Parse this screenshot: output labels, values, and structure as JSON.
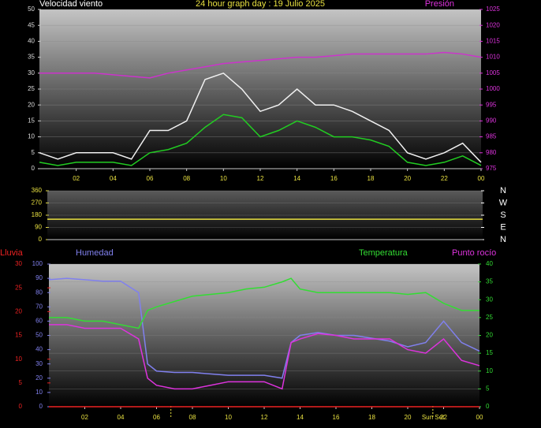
{
  "chart_data": [
    {
      "type": "line",
      "title": "24 hour graph day : 19 Julio 2025",
      "y_label": "Velocidad viento",
      "y2_label": "Presión",
      "x": [
        0,
        1,
        2,
        3,
        4,
        5,
        6,
        7,
        8,
        9,
        10,
        11,
        12,
        13,
        14,
        15,
        16,
        17,
        18,
        19,
        20,
        21,
        22,
        23,
        24
      ],
      "xlim": [
        0,
        24
      ],
      "xticks": [
        {
          "value": 2,
          "label": "02"
        },
        {
          "value": 4,
          "label": "04"
        },
        {
          "value": 6,
          "label": "06"
        },
        {
          "value": 8,
          "label": "08"
        },
        10,
        12,
        14,
        16,
        18,
        20,
        22,
        {
          "value": 24,
          "label": "00"
        }
      ],
      "ylim": [
        0,
        50
      ],
      "yticks": [
        0,
        5,
        10,
        15,
        20,
        25,
        30,
        35,
        40,
        45,
        50
      ],
      "y2lim": [
        975,
        1025
      ],
      "y2ticks": [
        975,
        980,
        985,
        990,
        995,
        1000,
        1005,
        1010,
        1015,
        1020,
        1025
      ],
      "grid": true,
      "series": [
        {
          "color": "#f0f0f0",
          "values": [
            5,
            3,
            5,
            5,
            5,
            3,
            12,
            12,
            15,
            28,
            30,
            25,
            18,
            20,
            25,
            20,
            20,
            18,
            15,
            12,
            5,
            3,
            5,
            8,
            2
          ]
        },
        {
          "color": "#22cc22",
          "values": [
            2,
            1,
            2,
            2,
            2,
            1,
            5,
            6,
            8,
            13,
            17,
            16,
            10,
            12,
            15,
            13,
            10,
            10,
            9,
            7,
            2,
            1,
            2,
            4,
            1
          ]
        },
        {
          "name": "Presión",
          "color": "#cc33cc",
          "axis": "y2",
          "values": [
            1005,
            1005,
            1005,
            1005,
            1004.5,
            1004,
            1003.5,
            1005,
            1006,
            1007,
            1008,
            1008.5,
            1009,
            1009.5,
            1010,
            1010,
            1010.5,
            1011,
            1011,
            1011,
            1011,
            1011,
            1011.5,
            1011,
            1010
          ]
        }
      ]
    },
    {
      "type": "line",
      "x": [
        0,
        24
      ],
      "xlim": [
        0,
        24
      ],
      "ylim": [
        0,
        360
      ],
      "yticks": [
        0,
        90,
        180,
        270,
        360
      ],
      "y2lim": [
        0,
        360
      ],
      "y2ticks": [
        {
          "value": 360,
          "label": "N"
        },
        {
          "value": 270,
          "label": "W"
        },
        {
          "value": 180,
          "label": "S"
        },
        {
          "value": 90,
          "label": "E"
        },
        {
          "value": 0,
          "label": "N"
        }
      ],
      "grid": true,
      "series": [
        {
          "color": "#e8e040",
          "values": [
            150,
            150
          ]
        }
      ]
    },
    {
      "type": "line",
      "x": [
        0,
        1,
        2,
        3,
        4,
        5,
        5.5,
        6,
        7,
        8,
        9,
        10,
        11,
        12,
        13,
        13.5,
        14,
        15,
        16,
        17,
        18,
        19,
        20,
        21,
        22,
        23,
        24
      ],
      "xlim": [
        0,
        24
      ],
      "xticks": [
        {
          "value": 2,
          "label": "02"
        },
        {
          "value": 4,
          "label": "04"
        },
        {
          "value": 6,
          "label": "06"
        },
        {
          "value": 8,
          "label": "08"
        },
        10,
        12,
        14,
        16,
        18,
        20,
        22,
        {
          "value": 24,
          "label": "00"
        }
      ],
      "ylim": [
        0,
        100
      ],
      "yticks": [
        0,
        10,
        20,
        30,
        40,
        50,
        60,
        70,
        80,
        90,
        100
      ],
      "y2lim": [
        0,
        40
      ],
      "y2ticks": [
        0,
        5,
        10,
        15,
        20,
        25,
        30,
        35,
        40
      ],
      "y3lim": [
        0,
        30
      ],
      "y3ticks": [
        0,
        5,
        10,
        15,
        20,
        25,
        30
      ],
      "grid": true,
      "grid_axis": "y2",
      "sunrise": 6.8,
      "sunset": 21.4,
      "sunset_label": "Sun Set",
      "series": [
        {
          "name": "Lluvia",
          "color": "#ee2222",
          "axis": "y3",
          "values": [
            0,
            0,
            0,
            0,
            0,
            0,
            0,
            0,
            0,
            0,
            0,
            0,
            0,
            0,
            0,
            0,
            0,
            0,
            0,
            0,
            0,
            0,
            0,
            0,
            0,
            0,
            0
          ]
        },
        {
          "name": "Humedad",
          "color": "#8080ee",
          "values": [
            89,
            90,
            89,
            88,
            88,
            80,
            30,
            25,
            24,
            24,
            23,
            22,
            22,
            22,
            20,
            45,
            50,
            52,
            50,
            50,
            48,
            46,
            42,
            45,
            60,
            45,
            39
          ]
        },
        {
          "name": "Temperatura",
          "color": "#33dd33",
          "axis": "y2",
          "values": [
            25,
            25,
            24,
            24,
            23,
            22,
            27,
            28,
            29.5,
            31,
            31.5,
            32,
            33,
            33.5,
            35,
            36,
            33,
            32,
            32,
            32,
            32,
            32,
            31.5,
            32,
            29,
            27,
            27
          ]
        },
        {
          "name": "Punto rocío",
          "color": "#dd33dd",
          "axis": "y2",
          "values": [
            23,
            23,
            22,
            22,
            22,
            19,
            8,
            6,
            5,
            5,
            6,
            7,
            7,
            7,
            5,
            18,
            19,
            20.5,
            20,
            19,
            19,
            19,
            16,
            15,
            19,
            13,
            11.5
          ]
        }
      ]
    }
  ]
}
